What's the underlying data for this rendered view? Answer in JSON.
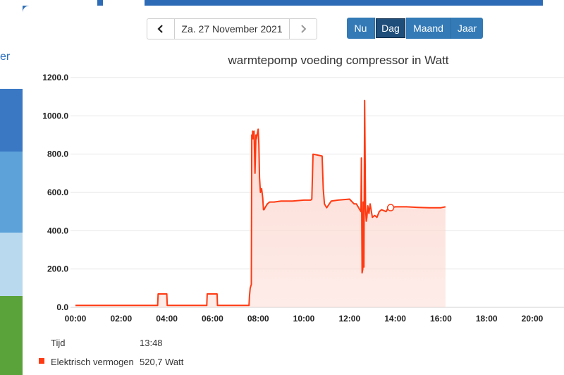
{
  "background": {
    "left_link_fragment": "er"
  },
  "navigation": {
    "date_label": "Za. 27 November 2021"
  },
  "range_buttons": [
    {
      "label": "Nu",
      "active": false
    },
    {
      "label": "Dag",
      "active": true
    },
    {
      "label": "Maand",
      "active": false
    },
    {
      "label": "Jaar",
      "active": false
    }
  ],
  "tooltip": {
    "time_label": "Tijd",
    "time_value": "13:48",
    "series_label": "Elektrisch vermogen",
    "series_value": "520,7 Watt"
  },
  "chart_data": {
    "type": "area",
    "title": "warmtepomp voeding compressor in Watt",
    "series_color": "#ff3a12",
    "fill_color": "#fcd5cd",
    "xlim": [
      0,
      22
    ],
    "ylim": [
      0,
      1200
    ],
    "x_ticks": [
      0,
      2,
      4,
      6,
      8,
      10,
      12,
      14,
      16,
      18,
      20
    ],
    "x_tick_labels": [
      "00:00",
      "02:00",
      "04:00",
      "06:00",
      "08:00",
      "10:00",
      "12:00",
      "14:00",
      "16:00",
      "18:00",
      "20:00"
    ],
    "y_ticks": [
      0,
      200,
      400,
      600,
      800,
      1000,
      1200
    ],
    "y_tick_labels": [
      "0.0",
      "200.0",
      "400.0",
      "600.0",
      "800.0",
      "1000.0",
      "1200.0"
    ],
    "grid": true,
    "marker": {
      "x": 13.8,
      "y": 520.7
    },
    "series": [
      {
        "name": "Elektrisch vermogen",
        "x": [
          0,
          3.6,
          3.62,
          4.0,
          4.02,
          5.75,
          5.77,
          6.2,
          6.22,
          7.6,
          7.62,
          7.65,
          7.7,
          7.72,
          7.74,
          7.76,
          7.78,
          7.82,
          7.86,
          7.9,
          7.92,
          8.0,
          8.03,
          8.06,
          8.1,
          8.15,
          8.2,
          8.23,
          8.26,
          8.3,
          8.4,
          8.5,
          8.7,
          9.0,
          9.5,
          10.0,
          10.3,
          10.35,
          10.4,
          10.8,
          10.85,
          10.9,
          11.0,
          11.2,
          11.5,
          12.0,
          12.2,
          12.3,
          12.5,
          12.52,
          12.55,
          12.58,
          12.6,
          12.63,
          12.66,
          12.7,
          12.73,
          12.76,
          12.8,
          12.85,
          12.9,
          13.0,
          13.1,
          13.2,
          13.3,
          13.4,
          13.5,
          13.6,
          13.7,
          13.8,
          14.0,
          14.5,
          15.0,
          15.5,
          16.0,
          16.2
        ],
        "y": [
          10,
          10,
          70,
          70,
          10,
          10,
          70,
          70,
          10,
          10,
          60,
          100,
          120,
          900,
          880,
          920,
          880,
          920,
          700,
          900,
          880,
          930,
          850,
          680,
          600,
          620,
          570,
          510,
          510,
          520,
          540,
          550,
          550,
          555,
          555,
          560,
          560,
          565,
          800,
          790,
          620,
          540,
          520,
          555,
          560,
          565,
          540,
          540,
          500,
          780,
          180,
          200,
          550,
          210,
          1080,
          520,
          450,
          470,
          530,
          490,
          540,
          470,
          480,
          470,
          500,
          510,
          505,
          500,
          520,
          520,
          525,
          525,
          522,
          520,
          520,
          525
        ]
      }
    ]
  }
}
